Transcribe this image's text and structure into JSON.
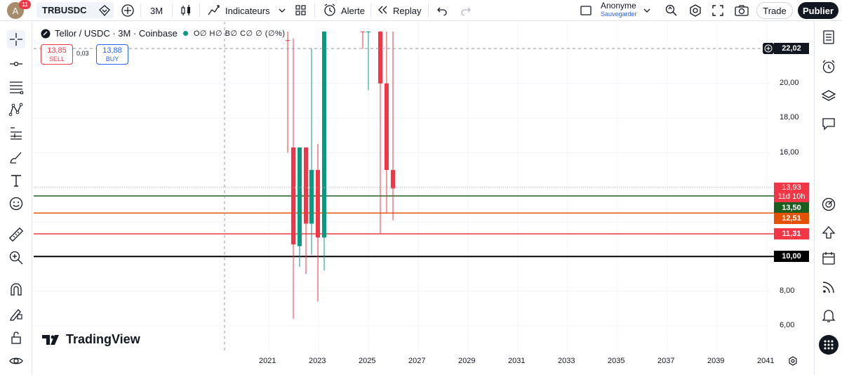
{
  "header": {
    "avatar_letter": "A",
    "notification_count": "11",
    "symbol": "TRBUSDC",
    "interval": "3M",
    "indicators_label": "Indicateurs",
    "alert_label": "Alerte",
    "replay_label": "Replay",
    "user_name": "Anonyme",
    "user_save": "Sauvegarder",
    "trade_label": "Trade",
    "publish_label": "Publier"
  },
  "legend": {
    "title": "Tellor / USDC · 3M · Coinbase",
    "ohlc": "O∅ H∅ B∅ C∅ ∅ (∅%)"
  },
  "order": {
    "sell_price": "13,85",
    "sell_label": "SELL",
    "spread": "0,03",
    "buy_price": "13,88",
    "buy_label": "BUY"
  },
  "price_axis": {
    "ticks": [
      "20,00",
      "18,00",
      "16,00",
      "8,00",
      "6,00"
    ],
    "crosshair_price": "22,02",
    "last_price": "13,93",
    "countdown": "11d 10h",
    "line_green": "13,50",
    "line_orange": "12,51",
    "line_red": "11,31",
    "line_black": "10,00"
  },
  "time_axis": {
    "ticks": [
      "2021",
      "2023",
      "2025",
      "2027",
      "2029",
      "2031",
      "2033",
      "2035",
      "2037",
      "2039",
      "2041"
    ]
  },
  "branding": {
    "logo_text": "TradingView"
  },
  "colors": {
    "up": "#089981",
    "down": "#f23645",
    "line_green": "#1b5e20",
    "line_orange": "#e65100",
    "line_red": "#f23645",
    "line_black": "#000000"
  }
}
